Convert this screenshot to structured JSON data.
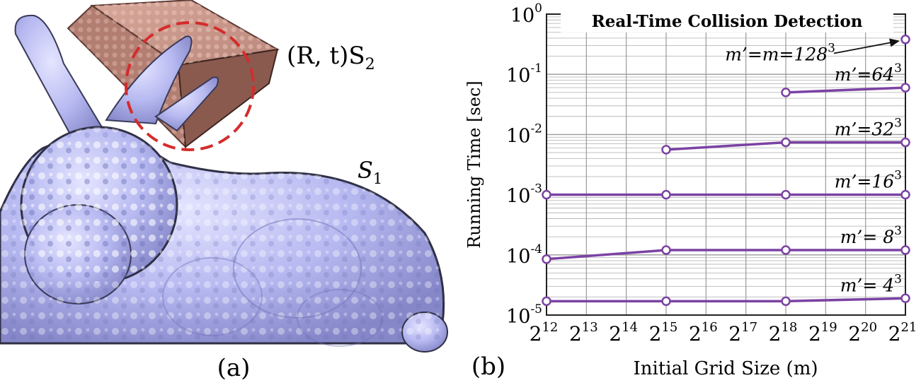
{
  "figure": {
    "panel_a": {
      "caption": "(a)",
      "transform_label": "(R, t)S",
      "transform_sub": "2",
      "shape1_label": "S",
      "shape1_sub": "1"
    },
    "panel_b": {
      "caption": "(b)"
    }
  },
  "colors": {
    "bunny": "#b7b9f1",
    "bunny_shade": "#8e90d4",
    "box": "#c9968a",
    "box_shade": "#8a5a4f",
    "circle": "#d42c2c",
    "series": "#7b42a3",
    "grid": "#b9b9b9"
  },
  "chart_data": {
    "type": "line",
    "title": "Real-Time Collision Detection",
    "xlabel": "Initial Grid Size (m)",
    "ylabel": "Running Time [sec]",
    "x_scale": "log2",
    "y_scale": "log10",
    "xlim": [
      4096,
      2097152
    ],
    "ylim": [
      1e-05,
      1
    ],
    "x_ticks": [
      {
        "base": "2",
        "exp": "12",
        "value": 4096
      },
      {
        "base": "2",
        "exp": "13",
        "value": 8192
      },
      {
        "base": "2",
        "exp": "14",
        "value": 16384
      },
      {
        "base": "2",
        "exp": "15",
        "value": 32768
      },
      {
        "base": "2",
        "exp": "16",
        "value": 65536
      },
      {
        "base": "2",
        "exp": "17",
        "value": 131072
      },
      {
        "base": "2",
        "exp": "18",
        "value": 262144
      },
      {
        "base": "2",
        "exp": "19",
        "value": 524288
      },
      {
        "base": "2",
        "exp": "20",
        "value": 1048576
      },
      {
        "base": "2",
        "exp": "21",
        "value": 2097152
      }
    ],
    "y_ticks": [
      {
        "base": "10",
        "exp": "0",
        "value": 1
      },
      {
        "base": "10",
        "exp": "-1",
        "value": 0.1
      },
      {
        "base": "10",
        "exp": "-2",
        "value": 0.01
      },
      {
        "base": "10",
        "exp": "-3",
        "value": 0.001
      },
      {
        "base": "10",
        "exp": "-4",
        "value": 0.0001
      },
      {
        "base": "10",
        "exp": "-5",
        "value": 1e-05
      }
    ],
    "grid": true,
    "series": [
      {
        "name": "m'= 4^3",
        "label_text": "m’= 4",
        "label_exp": "3",
        "x": [
          4096,
          32768,
          262144,
          2097152
        ],
        "y": [
          1.7e-05,
          1.7e-05,
          1.7e-05,
          1.9e-05
        ]
      },
      {
        "name": "m'= 8^3",
        "label_text": "m’= 8",
        "label_exp": "3",
        "x": [
          4096,
          32768,
          262144,
          2097152
        ],
        "y": [
          8.5e-05,
          0.00012,
          0.00012,
          0.00012
        ]
      },
      {
        "name": "m'=16^3",
        "label_text": "m’=16",
        "label_exp": "3",
        "x": [
          4096,
          32768,
          262144,
          2097152
        ],
        "y": [
          0.001,
          0.001,
          0.001,
          0.001
        ]
      },
      {
        "name": "m'=32^3",
        "label_text": "m’=32",
        "label_exp": "3",
        "x": [
          32768,
          262144,
          2097152
        ],
        "y": [
          0.0056,
          0.0074,
          0.0074
        ]
      },
      {
        "name": "m'=64^3",
        "label_text": "m’=64",
        "label_exp": "3",
        "x": [
          262144,
          2097152
        ],
        "y": [
          0.05,
          0.06
        ]
      },
      {
        "name": "m'=m=128^3",
        "label_text": "m’=m=128",
        "label_exp": "3",
        "x": [
          2097152
        ],
        "y": [
          0.38
        ]
      }
    ]
  }
}
